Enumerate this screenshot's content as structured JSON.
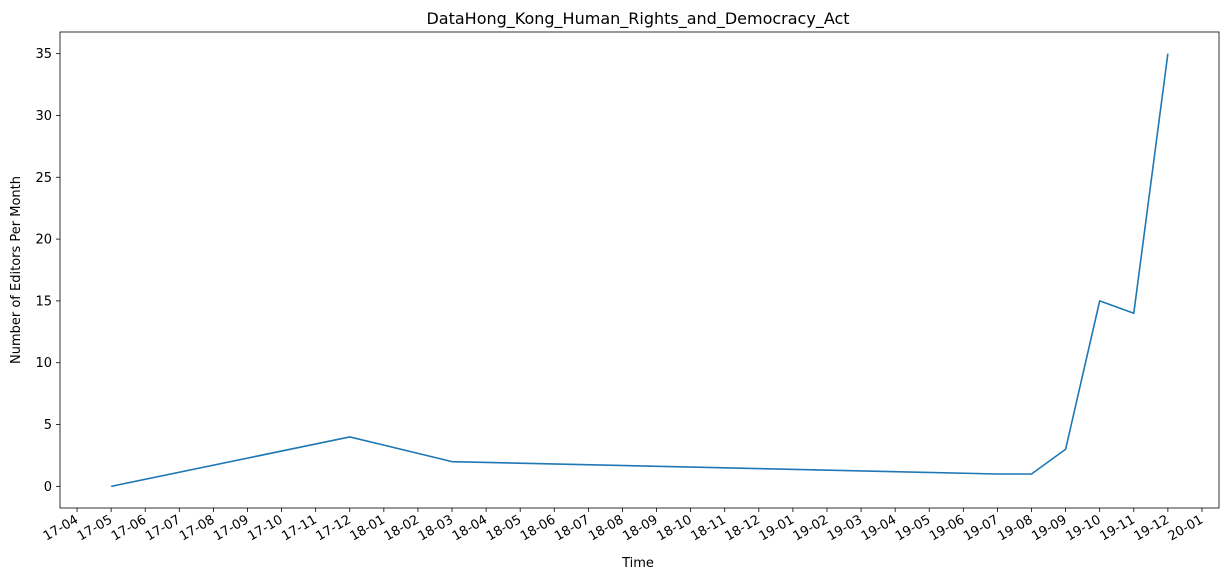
{
  "chart_data": {
    "type": "line",
    "title": "DataHong_Kong_Human_Rights_and_Democracy_Act",
    "xlabel": "Time",
    "ylabel": "Number of Editors Per Month",
    "x_tick_labels": [
      "17-04",
      "17-05",
      "17-06",
      "17-07",
      "17-08",
      "17-09",
      "17-10",
      "17-11",
      "17-12",
      "18-01",
      "18-02",
      "18-03",
      "18-04",
      "18-05",
      "18-06",
      "18-07",
      "18-08",
      "18-09",
      "18-10",
      "18-11",
      "18-12",
      "19-01",
      "19-02",
      "19-03",
      "19-04",
      "19-05",
      "19-06",
      "19-07",
      "19-08",
      "19-09",
      "19-10",
      "19-11",
      "19-12",
      "20-01"
    ],
    "x_range": [
      "2017-04",
      "2020-01"
    ],
    "y_ticks": [
      0,
      5,
      10,
      15,
      20,
      25,
      30,
      35
    ],
    "ylim": [
      -1.75,
      36.75
    ],
    "grid": false,
    "series": [
      {
        "color": "#1f77b4",
        "points": [
          {
            "x": "2017-05",
            "y": 0
          },
          {
            "x": "2017-12",
            "y": 4
          },
          {
            "x": "2018-03",
            "y": 2
          },
          {
            "x": "2019-07",
            "y": 1
          },
          {
            "x": "2019-08",
            "y": 1
          },
          {
            "x": "2019-09",
            "y": 3
          },
          {
            "x": "2019-10",
            "y": 15
          },
          {
            "x": "2019-11",
            "y": 14
          },
          {
            "x": "2019-12",
            "y": 35
          }
        ]
      }
    ]
  }
}
